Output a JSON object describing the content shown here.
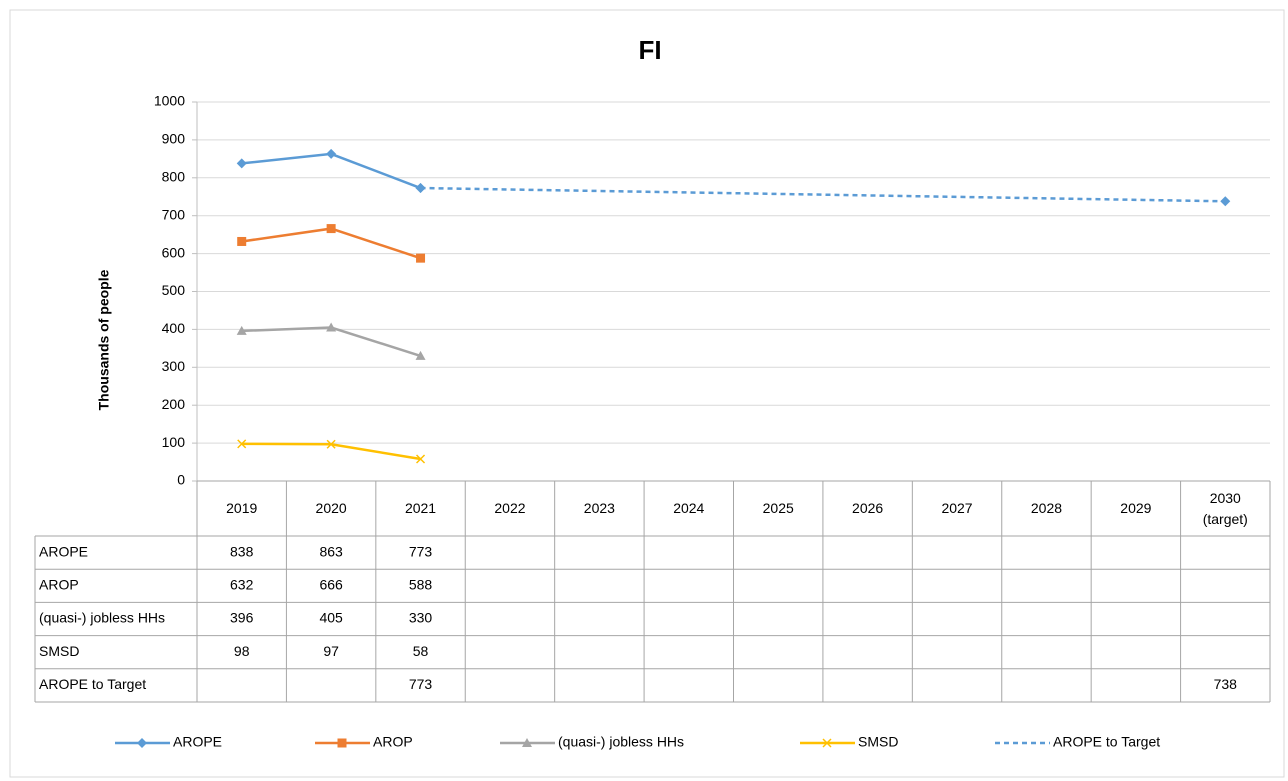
{
  "chart_data": {
    "type": "line",
    "title": "FI",
    "y_label": "Thousands of people",
    "categories": [
      "2019",
      "2020",
      "2021",
      "2022",
      "2023",
      "2024",
      "2025",
      "2026",
      "2027",
      "2028",
      "2029",
      "2030 (target)"
    ],
    "series": [
      {
        "name": "AROPE",
        "color": "#5b9bd5",
        "marker": "diamond",
        "values": [
          838,
          863,
          773,
          null,
          null,
          null,
          null,
          null,
          null,
          null,
          null,
          null
        ]
      },
      {
        "name": "AROP",
        "color": "#ed7d31",
        "marker": "square",
        "values": [
          632,
          666,
          588,
          null,
          null,
          null,
          null,
          null,
          null,
          null,
          null,
          null
        ]
      },
      {
        "name": "(quasi-) jobless HHs",
        "color": "#a5a5a5",
        "marker": "triangle",
        "values": [
          396,
          405,
          330,
          null,
          null,
          null,
          null,
          null,
          null,
          null,
          null,
          null
        ]
      },
      {
        "name": "SMSD",
        "color": "#ffc000",
        "marker": "x",
        "values": [
          98,
          97,
          58,
          null,
          null,
          null,
          null,
          null,
          null,
          null,
          null,
          null
        ]
      },
      {
        "name": "AROPE to Target",
        "color": "#5b9bd5",
        "marker": "diamond",
        "dashed": true,
        "connect_gaps": true,
        "values": [
          null,
          null,
          773,
          null,
          null,
          null,
          null,
          null,
          null,
          null,
          null,
          738
        ]
      }
    ],
    "ylim": [
      0,
      1000
    ],
    "yticks": [
      0,
      100,
      200,
      300,
      400,
      500,
      600,
      700,
      800,
      900,
      1000
    ],
    "grid": true,
    "data_table": true,
    "legend": "bottom"
  }
}
